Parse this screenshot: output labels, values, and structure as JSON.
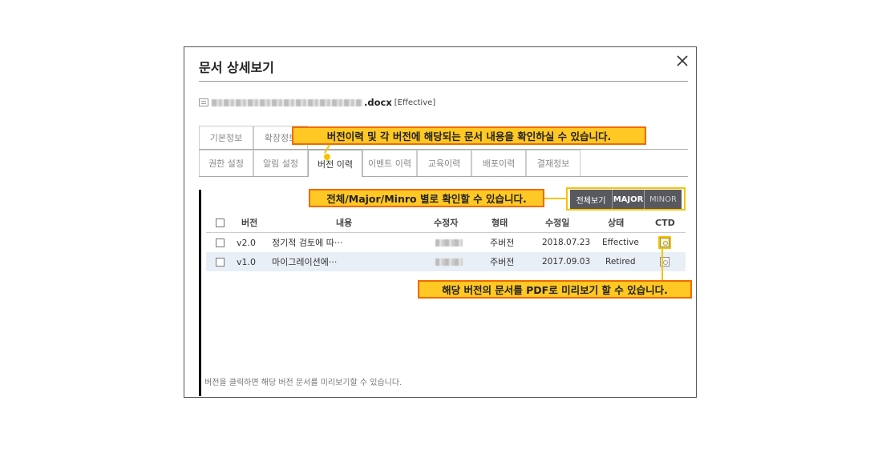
{
  "dialog": {
    "title": "문서 상세보기",
    "file_ext": ".docx",
    "file_status": "[Effective]"
  },
  "tabs_row1": [
    {
      "label": "기본정보"
    },
    {
      "label": "확장정보"
    }
  ],
  "tabs_row2": [
    {
      "label": "권한 설정"
    },
    {
      "label": "알림 설정"
    },
    {
      "label": "버전 이력"
    },
    {
      "label": "이벤트 이력"
    },
    {
      "label": "교육이력"
    },
    {
      "label": "배포이력"
    },
    {
      "label": "결재정보"
    }
  ],
  "filters": {
    "all": "전체보기",
    "major": "MAJOR",
    "minor": "MINOR"
  },
  "table": {
    "headers": {
      "version": "버전",
      "content": "내용",
      "editor": "수정자",
      "type": "형태",
      "date": "수정일",
      "status": "상태",
      "ctd": "CTD"
    },
    "rows": [
      {
        "version": "v2.0",
        "content": "정기적 검토에 따···",
        "type": "주버전",
        "date": "2018.07.23",
        "status": "Effective"
      },
      {
        "version": "v1.0",
        "content": "마이그레이션에···",
        "type": "주버전",
        "date": "2017.09.03",
        "status": "Retired"
      }
    ]
  },
  "hint": "버전을 클릭하면 해당 버전 문서를 미리보기할 수 있습니다.",
  "callouts": {
    "version_history": "버전이력 및 각 버전에 해당되는 문서 내용을 확인하실 수 있습니다.",
    "filter": "전체/Major/Minro 별로 확인할 수 있습니다.",
    "pdf": "해당 버전의 문서를 PDF로 미리보기 할 수 있습니다."
  },
  "colors": {
    "callout_fill": "#ffc825",
    "callout_border": "#f26a00",
    "highlight": "#f5c400",
    "filter_bg": "#58585f"
  }
}
